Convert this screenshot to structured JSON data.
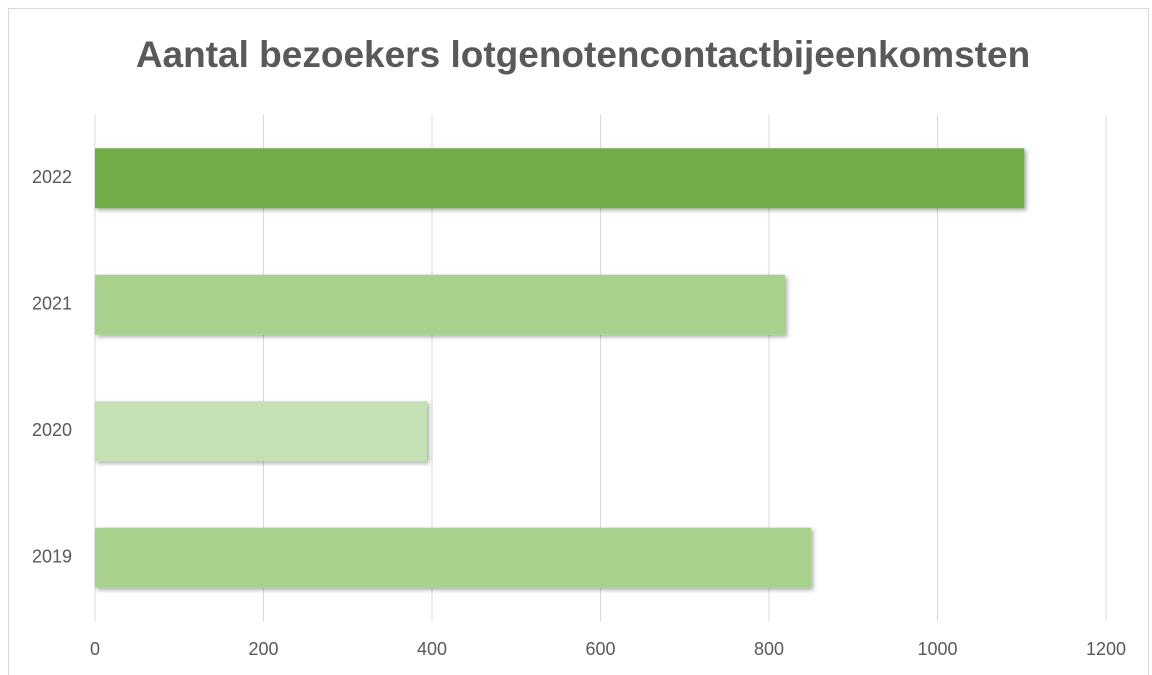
{
  "chart_data": {
    "type": "barh",
    "title": "Aantal bezoekers lotgenotencontactbijeenkomsten",
    "categories": [
      "2019",
      "2020",
      "2021",
      "2022"
    ],
    "values": [
      850,
      394,
      819,
      1103
    ],
    "colors": [
      "#a9d18e",
      "#c5e0b4",
      "#a9d18e",
      "#70ad47"
    ],
    "xlim": [
      0,
      1200
    ],
    "xticks": [
      0,
      200,
      400,
      600,
      800,
      1000,
      1200
    ],
    "grid": true
  }
}
